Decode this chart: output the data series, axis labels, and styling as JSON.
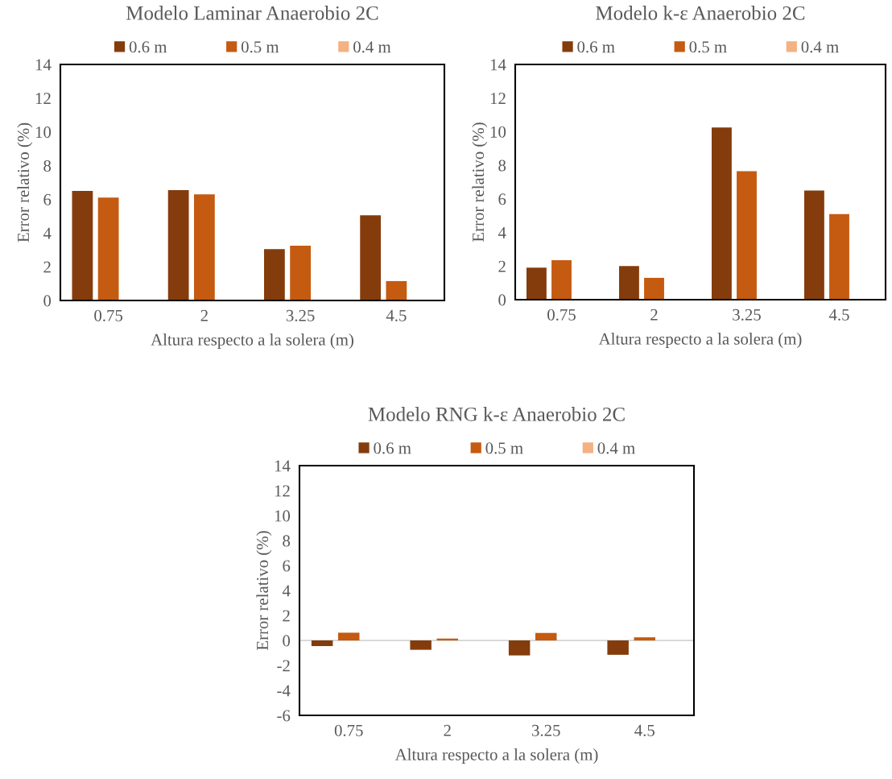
{
  "chart_data": [
    {
      "type": "bar",
      "title": "Modelo Laminar Anaerobio 2C",
      "xlabel": "Altura respecto a la solera (m)",
      "ylabel": "Error relativo (%)",
      "categories": [
        "0.75",
        "2",
        "3.25",
        "4.5"
      ],
      "ylim": [
        0,
        14
      ],
      "yticks": [
        0,
        2,
        4,
        6,
        8,
        10,
        12,
        14
      ],
      "grid": false,
      "legend": "top",
      "series": [
        {
          "name": "0.6 m",
          "color": "#843c0c",
          "values": [
            6.5,
            6.55,
            3.05,
            5.05
          ]
        },
        {
          "name": "0.5 m",
          "color": "#c55a11",
          "values": [
            6.1,
            6.3,
            3.25,
            1.15
          ]
        },
        {
          "name": "0.4 m",
          "color": "#f4b183",
          "values": [
            null,
            null,
            null,
            null
          ]
        }
      ]
    },
    {
      "type": "bar",
      "title": "Modelo k-ε Anaerobio 2C",
      "xlabel": "Altura respecto a la solera (m)",
      "ylabel": "Error relativo (%)",
      "categories": [
        "0.75",
        "2",
        "3.25",
        "4.5"
      ],
      "ylim": [
        0,
        14
      ],
      "yticks": [
        0,
        2,
        4,
        6,
        8,
        10,
        12,
        14
      ],
      "grid": false,
      "legend": "top",
      "series": [
        {
          "name": "0.6 m",
          "color": "#843c0c",
          "values": [
            1.9,
            2.0,
            10.25,
            6.5
          ]
        },
        {
          "name": "0.5 m",
          "color": "#c55a11",
          "values": [
            2.35,
            1.3,
            7.65,
            5.1
          ]
        },
        {
          "name": "0.4 m",
          "color": "#f4b183",
          "values": [
            null,
            null,
            null,
            null
          ]
        }
      ]
    },
    {
      "type": "bar",
      "title": "Modelo RNG k-ε Anaerobio 2C",
      "xlabel": "Altura respecto a la solera (m)",
      "ylabel": "Error relativo (%)",
      "categories": [
        "0.75",
        "2",
        "3.25",
        "4.5"
      ],
      "ylim": [
        -6,
        14
      ],
      "yticks": [
        -6,
        -4,
        -2,
        0,
        2,
        4,
        6,
        8,
        10,
        12,
        14
      ],
      "grid": false,
      "legend": "top",
      "ref_lines": [
        {
          "axis": "y",
          "value": 0,
          "color": "#d9d9d9"
        }
      ],
      "series": [
        {
          "name": "0.6 m",
          "color": "#843c0c",
          "values": [
            -0.45,
            -0.75,
            -1.2,
            -1.15
          ]
        },
        {
          "name": "0.5 m",
          "color": "#c55a11",
          "values": [
            0.62,
            0.15,
            0.6,
            0.25
          ]
        },
        {
          "name": "0.4 m",
          "color": "#f4b183",
          "values": [
            null,
            null,
            null,
            null
          ]
        }
      ]
    }
  ]
}
